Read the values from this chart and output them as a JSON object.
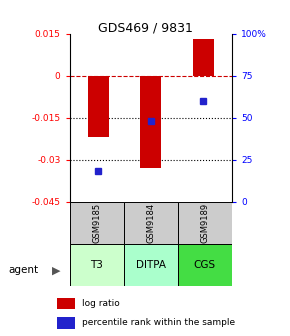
{
  "title": "GDS469 / 9831",
  "samples": [
    "GSM9185",
    "GSM9184",
    "GSM9189"
  ],
  "agents": [
    "T3",
    "DITPA",
    "CGS"
  ],
  "log_ratios": [
    -0.022,
    -0.033,
    0.013
  ],
  "percentile_ranks": [
    0.18,
    0.48,
    0.6
  ],
  "ylim_left": [
    -0.045,
    0.015
  ],
  "ylim_right": [
    0.0,
    1.0
  ],
  "yticks_left": [
    0.015,
    0.0,
    -0.015,
    -0.03,
    -0.045
  ],
  "ytick_labels_left": [
    "0.015",
    "0",
    "-0.015",
    "-0.03",
    "-0.045"
  ],
  "yticks_right": [
    1.0,
    0.75,
    0.5,
    0.25,
    0.0
  ],
  "ytick_labels_right": [
    "100%",
    "75",
    "50",
    "25",
    "0"
  ],
  "bar_color": "#cc0000",
  "dot_color": "#2222cc",
  "bar_width": 0.4,
  "agent_colors": [
    "#ccffcc",
    "#aaffcc",
    "#44dd44"
  ],
  "sample_bg": "#cccccc",
  "bg_color": "#ffffff"
}
